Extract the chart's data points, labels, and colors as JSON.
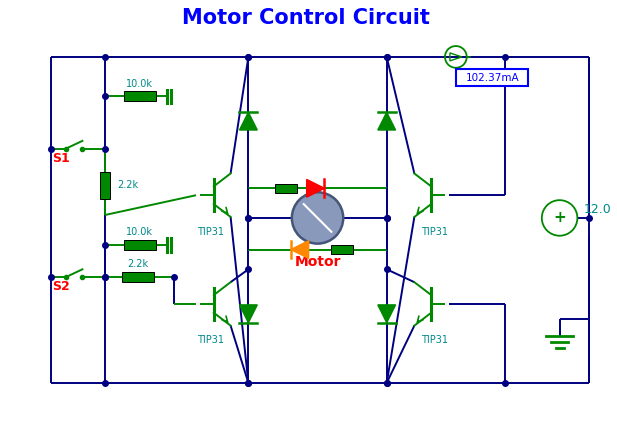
{
  "title": "Motor Control Circuit",
  "title_color": "#0000FF",
  "title_fontsize": 15,
  "bg_color": "#FFFFFF",
  "wire_color": "#000080",
  "gc": "#008800",
  "cc": "#008888",
  "rc": "#FF0000",
  "orange": "#FF8800",
  "motor_fill": "#8899BB",
  "motor_edge": "#445577",
  "label_S1": "S1",
  "label_S2": "S2",
  "label_motor": "Motor",
  "label_tip31": "TIP31",
  "label_102": "102.37mA",
  "label_12": "12.0",
  "label_10k": "10.0k",
  "label_22k": "2.2k"
}
